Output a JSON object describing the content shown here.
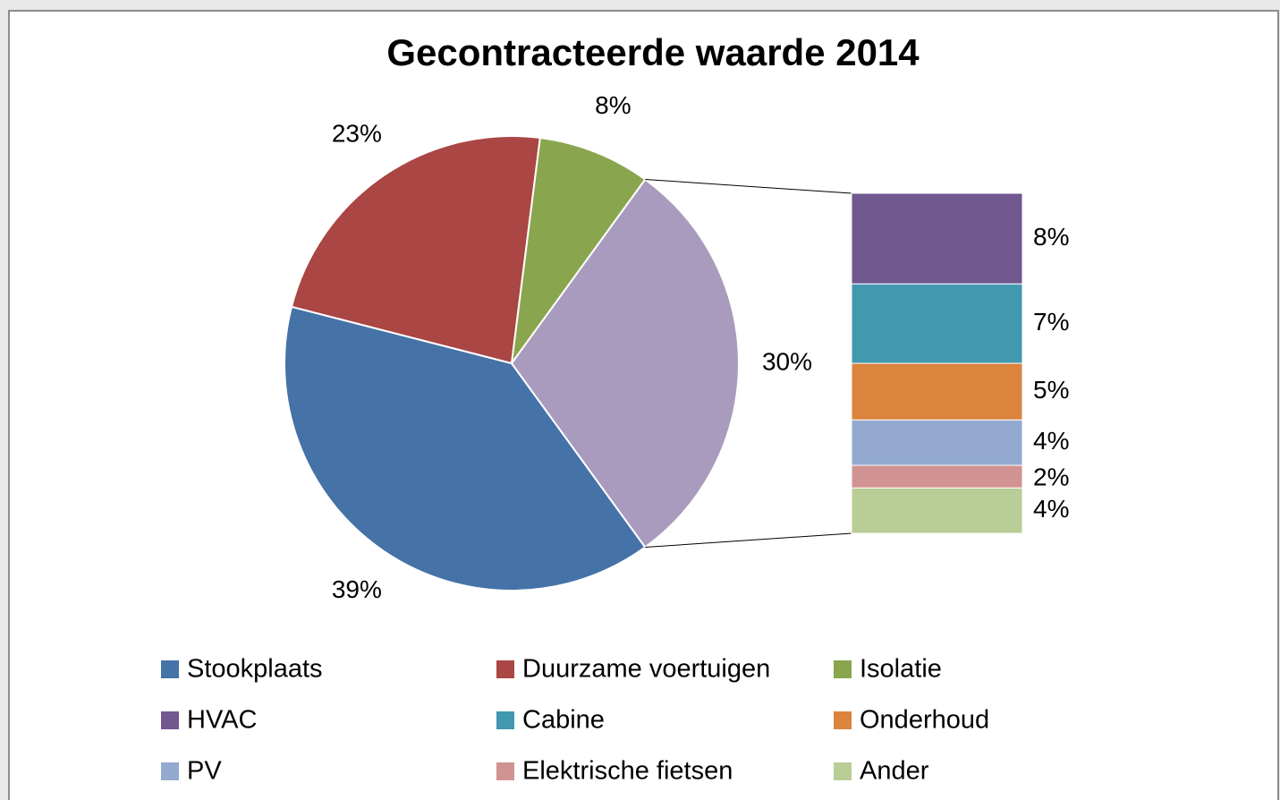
{
  "chart_data": {
    "type": "pie-of-bar",
    "title": "Gecontracteerde waarde 2014",
    "categories": [
      "Stookplaats",
      "Duurzame voertuigen",
      "Isolatie",
      "HVAC",
      "Cabine",
      "Onderhoud",
      "PV",
      "Elektrische fietsen",
      "Ander"
    ],
    "values": [
      39,
      23,
      8,
      8,
      7,
      5,
      4,
      2,
      4
    ],
    "value_labels": [
      "39%",
      "23%",
      "8%",
      "8%",
      "7%",
      "5%",
      "4%",
      "2%",
      "4%"
    ],
    "colors": [
      "#4572a7",
      "#aa4643",
      "#89a54e",
      "#71588f",
      "#4198af",
      "#db843d",
      "#93a9cf",
      "#d19392",
      "#b9cd96"
    ],
    "second_plot": {
      "value": 30,
      "value_label": "30%",
      "color": "#a99bbd",
      "first_index": 3
    },
    "legend": "bottom"
  }
}
